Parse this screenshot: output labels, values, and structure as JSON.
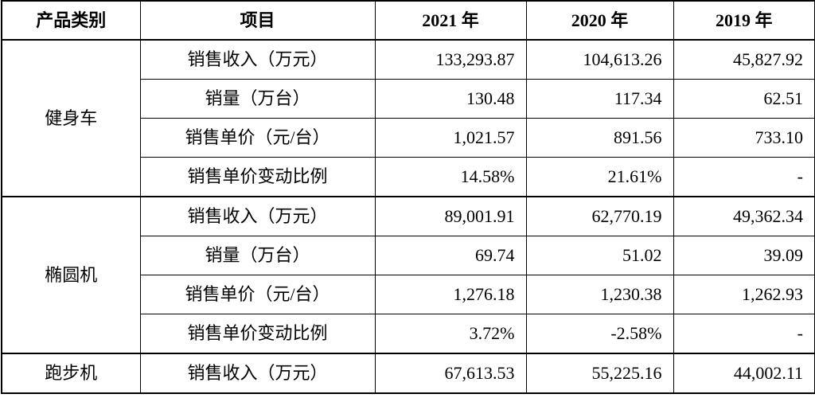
{
  "table": {
    "header": [
      "产品类别",
      "项目",
      "2021 年",
      "2020 年",
      "2019 年"
    ],
    "groups": [
      {
        "category": "健身车",
        "rows": [
          [
            "销售收入（万元）",
            "133,293.87",
            "104,613.26",
            "45,827.92"
          ],
          [
            "销量（万台）",
            "130.48",
            "117.34",
            "62.51"
          ],
          [
            "销售单价（元/台）",
            "1,021.57",
            "891.56",
            "733.10"
          ],
          [
            "销售单价变动比例",
            "14.58%",
            "21.61%",
            "-"
          ]
        ]
      },
      {
        "category": "椭圆机",
        "rows": [
          [
            "销售收入（万元）",
            "89,001.91",
            "62,770.19",
            "49,362.34"
          ],
          [
            "销量（万台）",
            "69.74",
            "51.02",
            "39.09"
          ],
          [
            "销售单价（元/台）",
            "1,276.18",
            "1,230.38",
            "1,262.93"
          ],
          [
            "销售单价变动比例",
            "3.72%",
            "-2.58%",
            "-"
          ]
        ]
      },
      {
        "category": "跑步机",
        "rows": [
          [
            "销售收入（万元）",
            "67,613.53",
            "55,225.16",
            "44,002.11"
          ]
        ]
      }
    ]
  }
}
